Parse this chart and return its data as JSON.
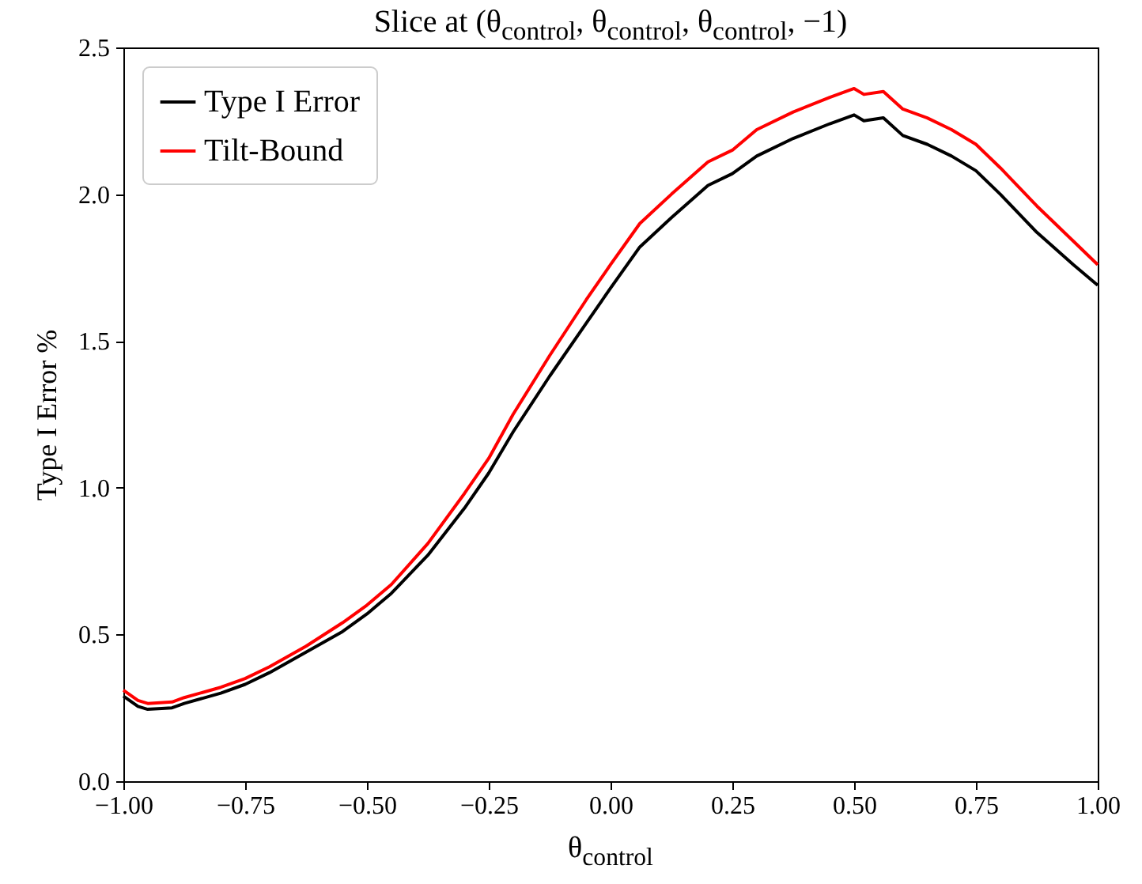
{
  "chart_data": {
    "type": "line",
    "title": "Slice at (θ$_{control}$, θ$_{control}$, θ$_{control}$, −1)",
    "xlabel": "θ$_{control}$",
    "ylabel": "Type I Error %",
    "x": [
      -1,
      -0.97,
      -0.95,
      -0.9,
      -0.875,
      -0.8,
      -0.75,
      -0.7,
      -0.625,
      -0.55,
      -0.5,
      -0.45,
      -0.375,
      -0.3,
      -0.25,
      -0.2,
      -0.125,
      -0.05,
      0,
      0.06,
      0.125,
      0.2,
      0.25,
      0.3,
      0.375,
      0.45,
      0.5,
      0.52,
      0.56,
      0.6,
      0.65,
      0.7,
      0.75,
      0.8,
      0.875,
      0.95,
      1
    ],
    "series": [
      {
        "name": "Type I Error",
        "color": "#000000",
        "values": [
          0.29,
          0.255,
          0.245,
          0.25,
          0.265,
          0.3,
          0.33,
          0.37,
          0.44,
          0.51,
          0.57,
          0.64,
          0.77,
          0.93,
          1.05,
          1.19,
          1.38,
          1.56,
          1.68,
          1.82,
          1.92,
          2.03,
          2.07,
          2.13,
          2.19,
          2.24,
          2.27,
          2.25,
          2.26,
          2.2,
          2.17,
          2.13,
          2.08,
          2.0,
          1.87,
          1.76,
          1.69
        ]
      },
      {
        "name": "Tilt-Bound",
        "color": "#ff0000",
        "values": [
          0.31,
          0.275,
          0.265,
          0.27,
          0.285,
          0.32,
          0.35,
          0.39,
          0.46,
          0.54,
          0.6,
          0.67,
          0.81,
          0.98,
          1.1,
          1.25,
          1.45,
          1.64,
          1.76,
          1.9,
          2.0,
          2.11,
          2.15,
          2.22,
          2.28,
          2.33,
          2.36,
          2.34,
          2.35,
          2.29,
          2.26,
          2.22,
          2.17,
          2.09,
          1.96,
          1.84,
          1.76
        ]
      }
    ],
    "xlim": [
      -1,
      1
    ],
    "xticks": [
      {
        "value": -1,
        "label": "−1.00"
      },
      {
        "value": -0.75,
        "label": "−0.75"
      },
      {
        "value": -0.5,
        "label": "−0.50"
      },
      {
        "value": -0.25,
        "label": "−0.25"
      },
      {
        "value": 0,
        "label": "0.00"
      },
      {
        "value": 0.25,
        "label": "0.25"
      },
      {
        "value": 0.5,
        "label": "0.50"
      },
      {
        "value": 0.75,
        "label": "0.75"
      },
      {
        "value": 1,
        "label": "1.00"
      }
    ],
    "ylim": [
      0,
      2.5
    ],
    "yticks": [
      {
        "value": 0,
        "label": "0.0"
      },
      0.5,
      {
        "value": 1,
        "label": "1.0"
      },
      1.5,
      {
        "value": 2,
        "label": "2.0"
      },
      2.5
    ],
    "grid": false,
    "legend": "top left",
    "marker": "none",
    "line_style": "solid"
  }
}
